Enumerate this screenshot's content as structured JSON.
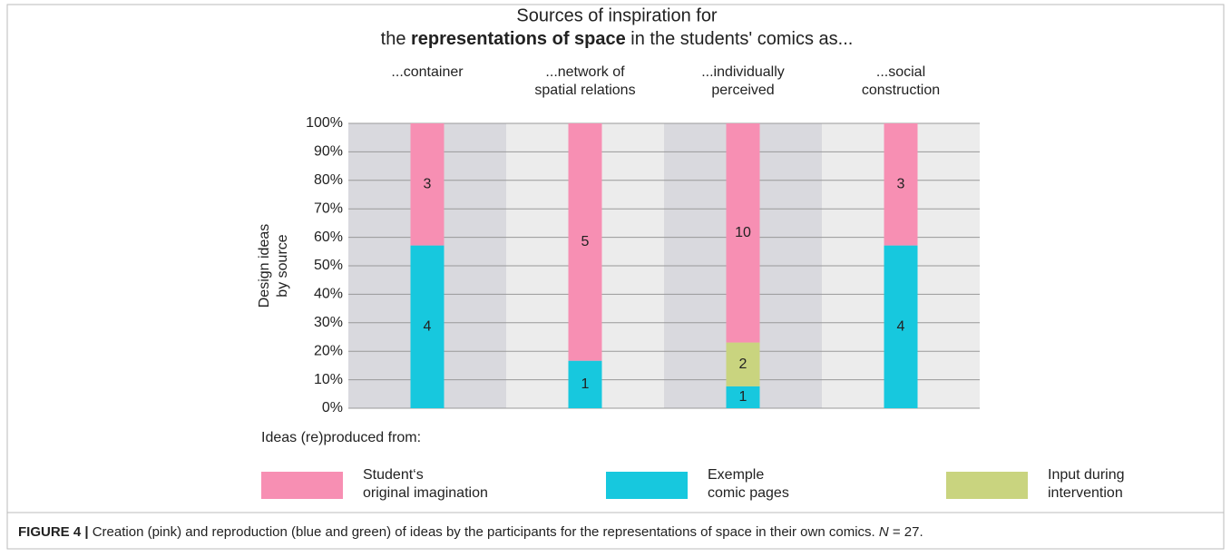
{
  "chart_data": {
    "type": "stacked_bar_100",
    "title": {
      "line1": "Sources of inspiration for",
      "line2_pre": "the ",
      "line2_bold": "representations of space",
      "line2_post": " in the students' comics as..."
    },
    "y_label": [
      "Design ideas",
      "by source"
    ],
    "categories": [
      [
        "...container"
      ],
      [
        "...network of",
        "spatial relations"
      ],
      [
        "...individually",
        "perceived"
      ],
      [
        "...social",
        "construction"
      ]
    ],
    "series": [
      {
        "name": [
          "Exemple",
          "comic pages"
        ],
        "color": "#17c8de",
        "values": [
          57.14,
          16.67,
          7.69,
          57.14
        ],
        "counts": [
          4,
          1,
          1,
          4
        ]
      },
      {
        "name": [
          "Input during",
          "intervention"
        ],
        "color": "#c9d47f",
        "values": [
          null,
          null,
          15.38,
          null
        ],
        "counts": [
          null,
          null,
          2,
          null
        ]
      },
      {
        "name": [
          "Student‘s",
          "original imagination"
        ],
        "color": "#f78fb3",
        "values": [
          42.86,
          83.33,
          76.92,
          42.86
        ],
        "counts": [
          3,
          5,
          10,
          3
        ]
      }
    ],
    "legend_title": "Ideas (re)produced from:",
    "legend_order": [
      2,
      0,
      1
    ],
    "ylim": [
      0,
      100
    ],
    "yticks": [
      {
        "value": 0,
        "label": "0%"
      },
      {
        "value": 10,
        "label": "10%"
      },
      {
        "value": 20,
        "label": "20%"
      },
      {
        "value": 30,
        "label": "30%"
      },
      {
        "value": 40,
        "label": "40%"
      },
      {
        "value": 50,
        "label": "50%"
      },
      {
        "value": 60,
        "label": "60%"
      },
      {
        "value": 70,
        "label": "70%"
      },
      {
        "value": 80,
        "label": "80%"
      },
      {
        "value": 90,
        "label": "90%"
      },
      {
        "value": 100,
        "label": "100%"
      }
    ],
    "grid": true,
    "band_colors": [
      "#d9d9de",
      "#ececec"
    ]
  },
  "caption": {
    "label": "FIGURE 4 |",
    "text": " Creation (pink) and reproduction (blue and green) of ideas by the participants for the representations of space in their own comics. ",
    "n": "N",
    "rest": " = 27."
  }
}
